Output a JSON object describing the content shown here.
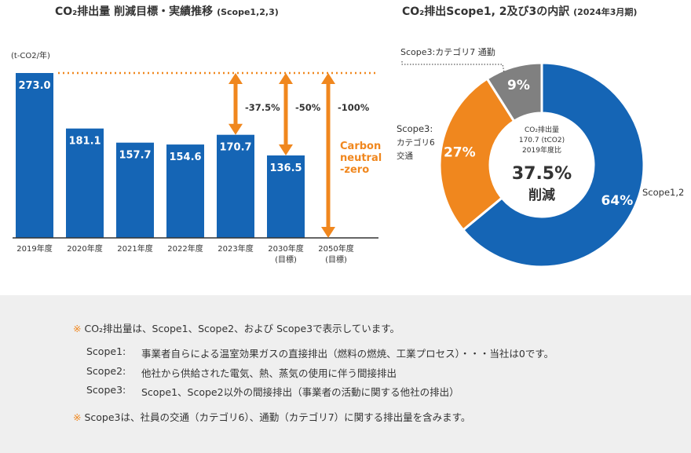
{
  "bar_title": {
    "main": "CO₂排出量 削減目標・実績推移",
    "sub": "(Scope1,2,3)"
  },
  "pie_title": {
    "main": "CO₂排出Scope1, 2及び3の内訳",
    "sub": "(2024年3月期)"
  },
  "unit_label": "(t-CO2/年)",
  "chart_data": [
    {
      "type": "bar",
      "categories": [
        "2019年度",
        "2020年度",
        "2021年度",
        "2022年度",
        "2023年度",
        "2030年度|(目標)",
        "2050年度|(目標)"
      ],
      "values": [
        273.0,
        181.1,
        157.7,
        154.6,
        170.7,
        136.5,
        null
      ],
      "value_labels": [
        "273.0",
        "181.1",
        "157.7",
        "154.6",
        "170.7",
        "136.5",
        ""
      ],
      "ylabel": "(t-CO2/年)",
      "ylim": [
        0,
        273
      ],
      "reference_line": 273.0,
      "annotations": [
        {
          "category": "2023年度",
          "text": "-37.5%"
        },
        {
          "category": "2030年度|(目標)",
          "text": "-50%"
        },
        {
          "category": "2050年度|(目標)",
          "text": "-100%"
        }
      ],
      "note_text": "Carbon|neutral|-zero",
      "colors": {
        "bar": "#1565b5",
        "accent": "#f0871e"
      }
    },
    {
      "type": "pie",
      "labels": [
        "Scope1,2",
        "Scope3:|カテゴリ6|交通",
        "Scope3:カテゴリ7 通勤"
      ],
      "values": [
        64,
        27,
        9
      ],
      "value_labels": [
        "64%",
        "27%",
        "9%"
      ],
      "colors": [
        "#1565b5",
        "#f0871e",
        "#808080"
      ],
      "center_text": {
        "line1": "CO₂排出量",
        "line2": "170.7 (tCO2)",
        "line3": "2019年度比",
        "big": "37.5%",
        "big2": "削減"
      }
    }
  ],
  "notes": {
    "mark": "※",
    "line1": "CO₂排出量は、Scope1、Scope2、および Scope3で表示しています。",
    "definitions": [
      {
        "key": "Scope1:",
        "value": "事業者自らによる温室効果ガスの直接排出（燃料の燃焼、工業プロセス）・・・当社は0です。"
      },
      {
        "key": "Scope2:",
        "value": "他社から供給された電気、熱、蒸気の使用に伴う間接排出"
      },
      {
        "key": "Scope3:",
        "value": "Scope1、Scope2以外の間接排出（事業者の活動に関する他社の排出）"
      }
    ],
    "line2": "Scope3は、社員の交通（カテゴリ6）、通勤（カテゴリ7）に関する排出量を含みます。"
  }
}
